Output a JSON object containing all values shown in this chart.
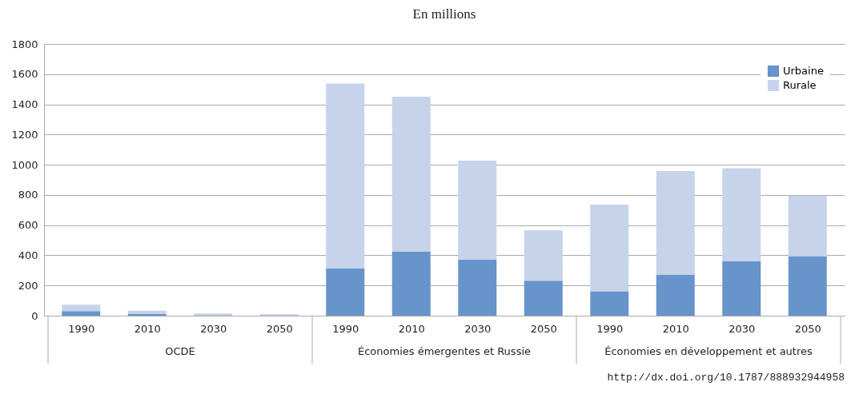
{
  "chart_data": {
    "type": "bar",
    "title": "En millions",
    "categories": [
      "1990",
      "2010",
      "2030",
      "2050",
      "1990",
      "2010",
      "2030",
      "2050",
      "1990",
      "2010",
      "2030",
      "2050"
    ],
    "stacked": true,
    "series": [
      {
        "name": "Urbaine",
        "color": "#6794cb",
        "values": [
          30,
          10,
          3,
          null,
          314,
          424,
          372,
          232,
          162,
          272,
          361,
          394
        ]
      },
      {
        "name": "Rurale",
        "color": "#c6d3ea",
        "values": [
          43,
          23,
          12,
          10,
          1224,
          1026,
          655,
          333,
          574,
          686,
          616,
          401
        ]
      }
    ],
    "ylim": [
      0,
      1800
    ],
    "yticks": [
      0,
      200,
      400,
      600,
      800,
      1000,
      1200,
      1400,
      1600,
      1800
    ],
    "grid": "y",
    "legend": "top right",
    "annotations": [
      "OCDE",
      "Économies émergentes et Russie",
      "Économies en développement et autres",
      "http://dx.doi.org/10.1787/888932944958"
    ]
  }
}
